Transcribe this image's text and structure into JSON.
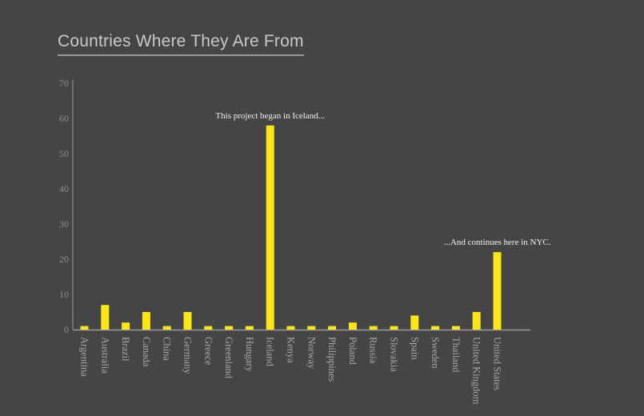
{
  "chart_data": {
    "type": "bar",
    "title": "Countries Where They Are From",
    "categories": [
      "Argentina",
      "Australia",
      "Brazil",
      "Canada",
      "China",
      "Germany",
      "Greece",
      "Greenland",
      "Hungary",
      "Iceland",
      "Kenya",
      "Norway",
      "Philippines",
      "Poland",
      "Russia",
      "Slovakia",
      "Spain",
      "Sweden",
      "Thailand",
      "United Kingdom",
      "United States"
    ],
    "values": [
      1,
      7,
      2,
      5,
      1,
      5,
      1,
      1,
      1,
      58,
      1,
      1,
      1,
      2,
      1,
      1,
      4,
      1,
      1,
      5,
      22
    ],
    "ylim": [
      0,
      70
    ],
    "yticks": [
      0,
      10,
      20,
      30,
      40,
      50,
      60,
      70
    ],
    "grid": false,
    "bar_color": "#fce617",
    "annotations": [
      {
        "category": "Iceland",
        "text": "This project began in Iceland..."
      },
      {
        "category": "United States",
        "text": "...And continues here in NYC."
      }
    ]
  }
}
